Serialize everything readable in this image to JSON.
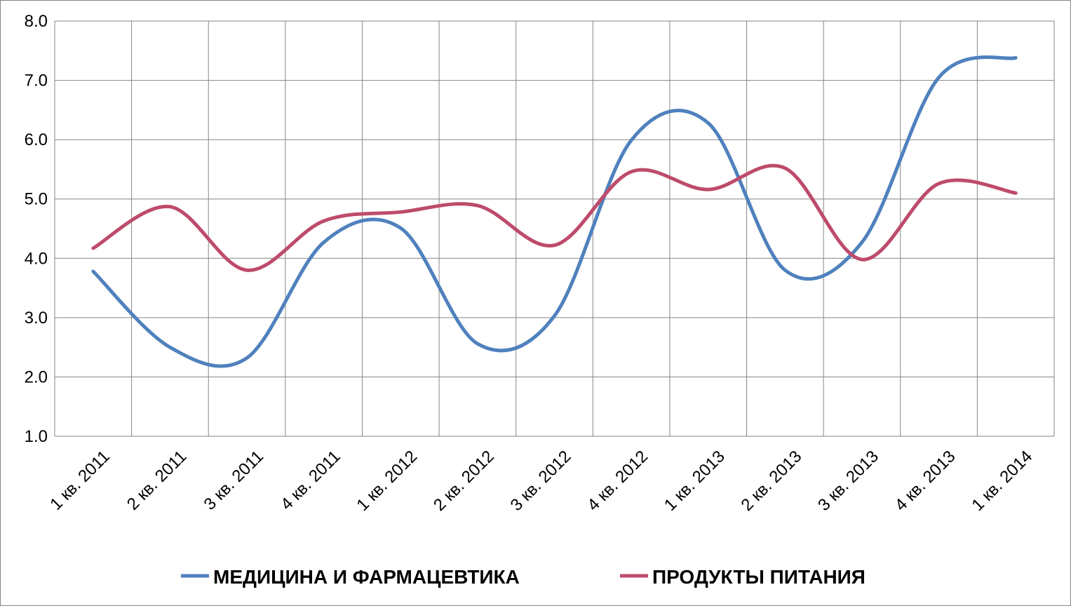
{
  "chart_data": {
    "type": "line",
    "categories": [
      "1 кв. 2011",
      "2 кв. 2011",
      "3 кв. 2011",
      "4 кв. 2011",
      "1 кв. 2012",
      "2 кв. 2012",
      "3 кв. 2012",
      "4 кв. 2012",
      "1 кв. 2013",
      "2 кв. 2013",
      "3 кв. 2013",
      "4 кв. 2013",
      "1 кв. 2014"
    ],
    "series": [
      {
        "name": "МЕДИЦИНА И ФАРМАЦЕВТИКА",
        "color": "#4f81bd",
        "values": [
          3.78,
          2.5,
          2.32,
          4.27,
          4.51,
          2.56,
          3.03,
          5.99,
          6.28,
          3.8,
          4.27,
          7.05,
          7.38
        ]
      },
      {
        "name": "ПРОДУКТЫ ПИТАНИЯ",
        "color": "#be4b6b",
        "values": [
          4.17,
          4.87,
          3.8,
          4.63,
          4.78,
          4.89,
          4.22,
          5.46,
          5.16,
          5.52,
          3.98,
          5.26,
          5.1
        ]
      }
    ],
    "ylim": [
      1,
      8
    ],
    "yticks": [
      {
        "value": 1,
        "label": "1.0"
      },
      {
        "value": 2,
        "label": "2.0"
      },
      {
        "value": 3,
        "label": "3.0"
      },
      {
        "value": 4,
        "label": "4.0"
      },
      {
        "value": 5,
        "label": "5.0"
      },
      {
        "value": 6,
        "label": "6.0"
      },
      {
        "value": 7,
        "label": "7.0"
      },
      {
        "value": 8,
        "label": "8.0"
      }
    ],
    "grid": true,
    "legend": "bottom"
  }
}
